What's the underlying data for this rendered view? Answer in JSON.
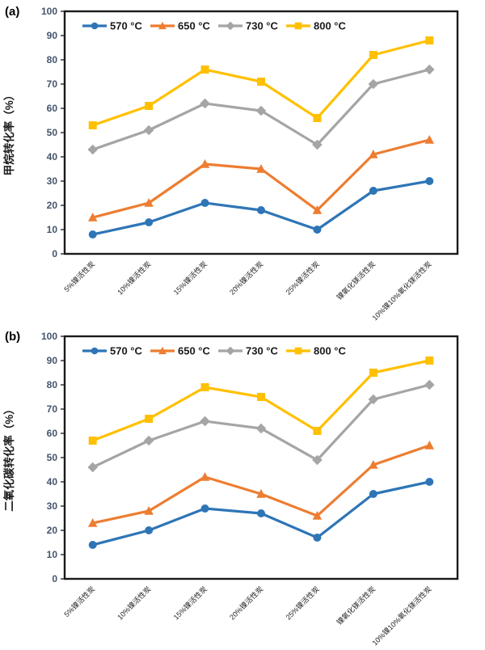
{
  "page": {
    "background": "#ffffff"
  },
  "style": {
    "axis_line_color": "#1a1a1a",
    "tick_label_color": "#44546A",
    "category_label_color": "#262626",
    "legend_text_color": "#1a1a1a",
    "axis_title_color": "#1a1a1a"
  },
  "chart_data": [
    {
      "type": "line",
      "panel_label": "(a)",
      "title": "",
      "xlabel": "",
      "ylabel": "甲烷转化率（%）",
      "ylim": [
        0,
        100
      ],
      "ytick_step": 10,
      "grid": false,
      "legend_position": "top-inside",
      "categories": [
        "5%镍活性炭",
        "10%镍活性炭",
        "15%镍活性炭",
        "20%镍活性炭",
        "25%镍活性炭",
        "镍氧化镁活性炭",
        "10%镍10%氧化镁活性炭"
      ],
      "series": [
        {
          "name": "570 °C",
          "color": "#2E75B6",
          "marker": "circle",
          "values": [
            8,
            13,
            21,
            18,
            10,
            26,
            30
          ]
        },
        {
          "name": "650 °C",
          "color": "#ED7D31",
          "marker": "triangle",
          "values": [
            15,
            21,
            37,
            35,
            18,
            41,
            47
          ]
        },
        {
          "name": "730 °C",
          "color": "#A5A5A5",
          "marker": "diamond",
          "values": [
            43,
            51,
            62,
            59,
            45,
            70,
            76
          ]
        },
        {
          "name": "800 °C",
          "color": "#FFC000",
          "marker": "square",
          "values": [
            53,
            61,
            76,
            71,
            56,
            82,
            88
          ]
        }
      ]
    },
    {
      "type": "line",
      "panel_label": "(b)",
      "title": "",
      "xlabel": "",
      "ylabel": "二氧化碳转化率（%）",
      "ylim": [
        0,
        100
      ],
      "ytick_step": 10,
      "grid": false,
      "legend_position": "top-inside",
      "categories": [
        "5%镍活性炭",
        "10%镍活性炭",
        "15%镍活性炭",
        "20%镍活性炭",
        "25%镍活性炭",
        "镍氧化镁活性炭",
        "10%镍10%氧化镁活性炭"
      ],
      "series": [
        {
          "name": "570 °C",
          "color": "#2E75B6",
          "marker": "circle",
          "values": [
            14,
            20,
            29,
            27,
            17,
            35,
            40
          ]
        },
        {
          "name": "650 °C",
          "color": "#ED7D31",
          "marker": "triangle",
          "values": [
            23,
            28,
            42,
            35,
            26,
            47,
            55
          ]
        },
        {
          "name": "730 °C",
          "color": "#A5A5A5",
          "marker": "diamond",
          "values": [
            46,
            57,
            65,
            62,
            49,
            74,
            80
          ]
        },
        {
          "name": "800 °C",
          "color": "#FFC000",
          "marker": "square",
          "values": [
            57,
            66,
            79,
            75,
            61,
            85,
            90
          ]
        }
      ]
    }
  ]
}
